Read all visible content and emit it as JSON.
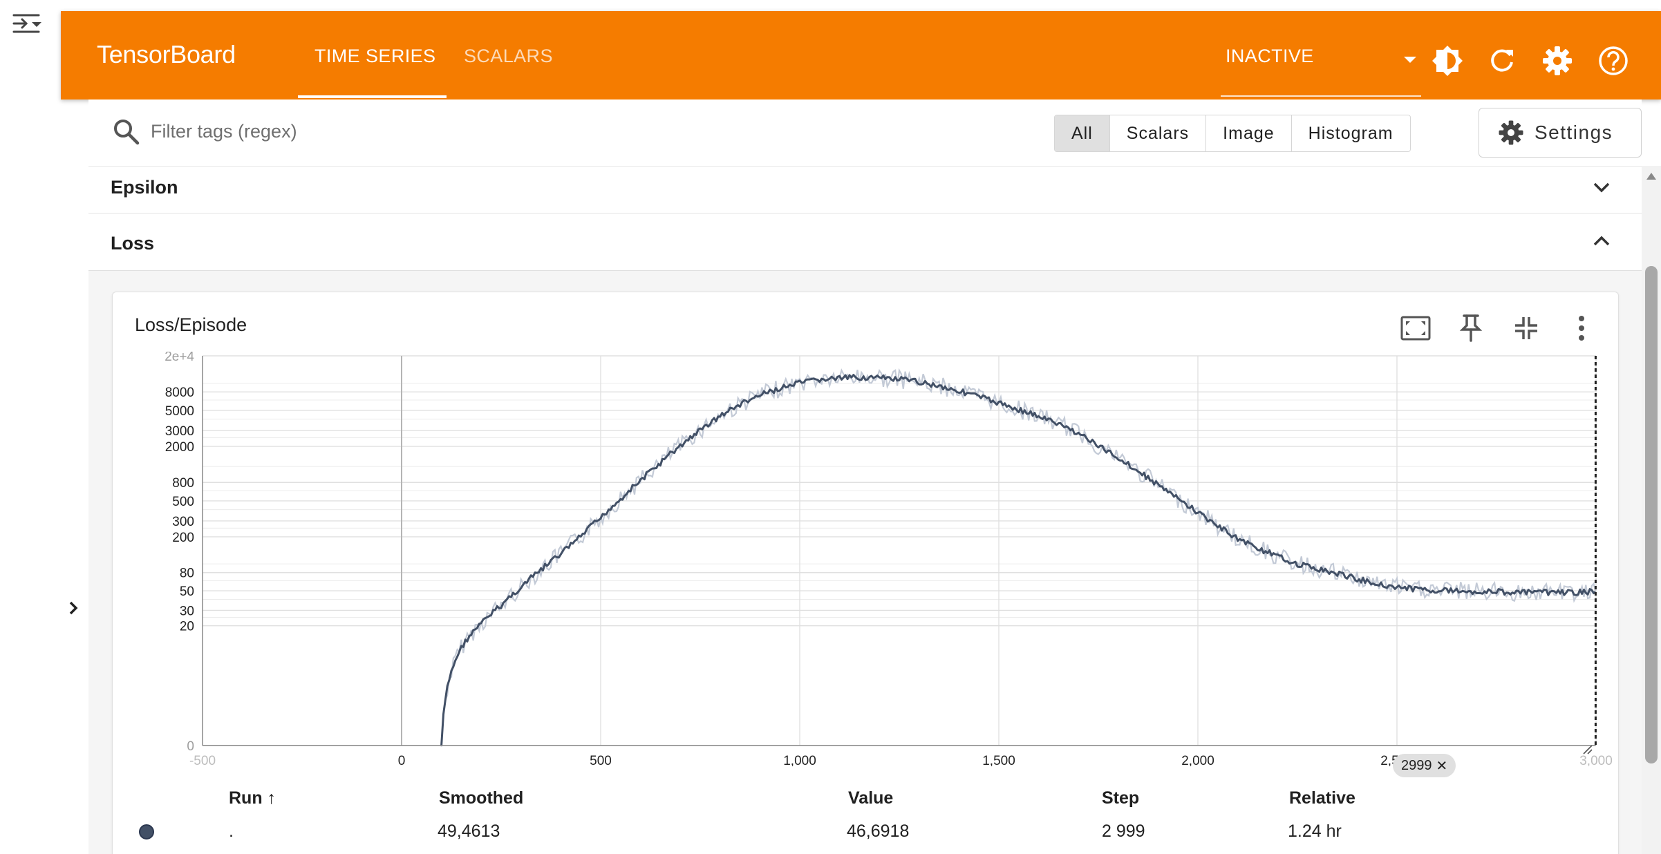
{
  "app": {
    "title": "TensorBoard"
  },
  "nav": {
    "tabs": [
      {
        "label": "TIME SERIES",
        "active": true
      },
      {
        "label": "SCALARS",
        "active": false
      }
    ]
  },
  "header": {
    "plugin_select": "INACTIVE",
    "icons": [
      "theme-toggle-icon",
      "reload-icon",
      "settings-icon",
      "help-icon"
    ]
  },
  "filter": {
    "placeholder": "Filter tags (regex)",
    "types": [
      "All",
      "Scalars",
      "Image",
      "Histogram"
    ],
    "selected_type": "All",
    "settings_label": "Settings"
  },
  "groups": [
    {
      "name": "Epsilon",
      "expanded": false
    },
    {
      "name": "Loss",
      "expanded": true
    }
  ],
  "card": {
    "title": "Loss/Episode"
  },
  "chart_data": {
    "type": "line",
    "title": "Loss/Episode",
    "xlabel": "",
    "ylabel": "",
    "yscale": "symlog",
    "x_ticks": [
      "-500",
      "0",
      "500",
      "1,000",
      "1,500",
      "2,000",
      "2,500",
      "3,000"
    ],
    "xlim": [
      -500,
      3000
    ],
    "y_ticks": [
      "0",
      "20",
      "30",
      "50",
      "80",
      "200",
      "300",
      "500",
      "800",
      "2000",
      "3000",
      "5000",
      "8000",
      "2e+4"
    ],
    "grid": true,
    "step_marker": 2999,
    "series": [
      {
        "name": ".",
        "color": "#425066",
        "raw_color": "#c3cad6",
        "x": [
          100,
          150,
          200,
          250,
          300,
          350,
          400,
          450,
          500,
          550,
          600,
          650,
          700,
          750,
          800,
          850,
          900,
          950,
          1000,
          1050,
          1100,
          1150,
          1200,
          1250,
          1300,
          1350,
          1400,
          1450,
          1500,
          1550,
          1600,
          1650,
          1700,
          1750,
          1800,
          1850,
          1900,
          1950,
          2000,
          2050,
          2100,
          2150,
          2200,
          2250,
          2300,
          2350,
          2400,
          2450,
          2500,
          2550,
          2600,
          2650,
          2700,
          2750,
          2800,
          2850,
          2900,
          2950,
          2999
        ],
        "y": [
          0,
          11,
          21,
          34,
          54,
          85,
          128,
          200,
          320,
          520,
          830,
          1300,
          2000,
          3000,
          4300,
          5800,
          7300,
          8700,
          10000,
          10900,
          11300,
          11600,
          11400,
          11000,
          10300,
          9300,
          8200,
          7100,
          6000,
          5100,
          4300,
          3500,
          2800,
          2000,
          1500,
          1050,
          750,
          520,
          370,
          260,
          190,
          150,
          120,
          100,
          88,
          78,
          68,
          60,
          55,
          52,
          51,
          50,
          49,
          49,
          48,
          48,
          48,
          48,
          49
        ]
      }
    ]
  },
  "table": {
    "headers": {
      "run": "Run ↑",
      "smoothed": "Smoothed",
      "value": "Value",
      "step": "Step",
      "relative": "Relative"
    },
    "rows": [
      {
        "run": ".",
        "smoothed": "49,4613",
        "value": "46,6918",
        "step": "2 999",
        "relative": "1.24 hr",
        "color": "#425066"
      }
    ]
  },
  "step_chip": "2999"
}
